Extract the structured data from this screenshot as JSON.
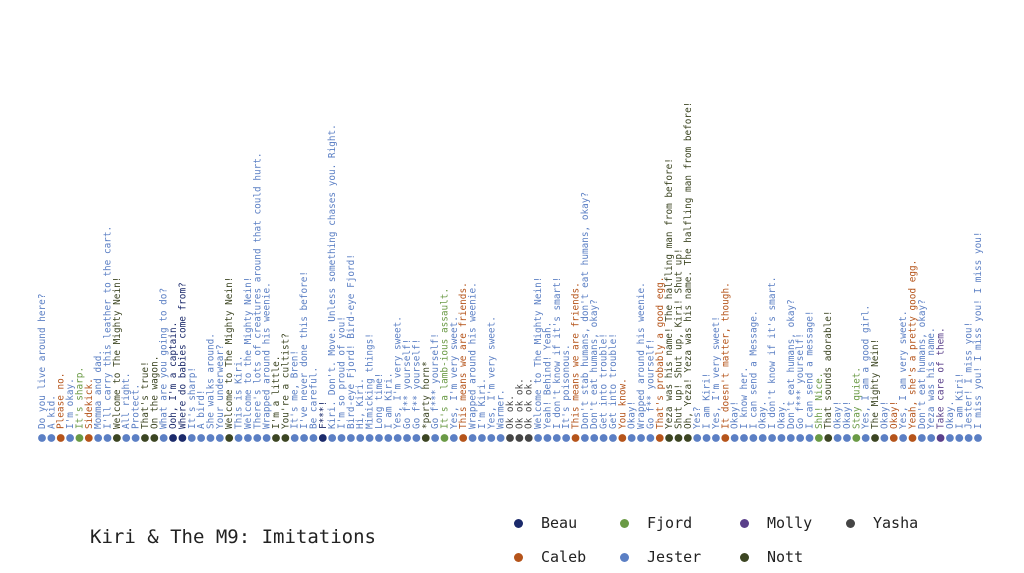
{
  "title": "Kiri & The M9: Imitations",
  "colors": {
    "Beau": "#1b2a6b",
    "Caleb": "#b5541a",
    "Fjord": "#6a9a45",
    "Jester": "#5b7fc4",
    "Molly": "#5a3f8a",
    "Nott": "#3c4522",
    "Yasha": "#454545"
  },
  "legend": [
    {
      "name": "Beau"
    },
    {
      "name": "Fjord"
    },
    {
      "name": "Molly"
    },
    {
      "name": "Yasha"
    },
    {
      "name": "Caleb"
    },
    {
      "name": "Jester"
    },
    {
      "name": "Nott"
    }
  ],
  "chart_data": {
    "type": "scatter",
    "title": "Kiri & The M9: Imitations",
    "series": [
      "Beau",
      "Caleb",
      "Fjord",
      "Jester",
      "Molly",
      "Nott",
      "Yasha"
    ],
    "points": [
      {
        "speaker": "Jester",
        "text": "Do you live around here?"
      },
      {
        "speaker": "Jester",
        "text": "A kid."
      },
      {
        "speaker": "Caleb",
        "text": "Please no."
      },
      {
        "speaker": "Jester",
        "text": "I'm okay."
      },
      {
        "speaker": "Fjord",
        "text": "It's sharp."
      },
      {
        "speaker": "Caleb",
        "text": "Sidekick."
      },
      {
        "speaker": "Jester",
        "text": "Momma and dad."
      },
      {
        "speaker": "Jester",
        "text": "I'll carry this leather to the cart."
      },
      {
        "speaker": "Nott",
        "text": "Welcome to The Mighty Nein!"
      },
      {
        "speaker": "Jester",
        "text": "All right."
      },
      {
        "speaker": "Jester",
        "text": "Protect."
      },
      {
        "speaker": "Nott",
        "text": "That's true!"
      },
      {
        "speaker": "Nott",
        "text": "On the wagon."
      },
      {
        "speaker": "Jester",
        "text": "What are you going to do?"
      },
      {
        "speaker": "Beau",
        "text": "Ooh, I'm a captain."
      },
      {
        "speaker": "Beau",
        "text": "Where do babies come from?"
      },
      {
        "speaker": "Jester",
        "text": "It's sharp!"
      },
      {
        "speaker": "Jester",
        "text": "A bird!"
      },
      {
        "speaker": "Jester",
        "text": "She walks around."
      },
      {
        "speaker": "Jester",
        "text": "Your underwear?"
      },
      {
        "speaker": "Nott",
        "text": "Welcome to The Mighty Nein!"
      },
      {
        "speaker": "Jester",
        "text": "This is Kiri."
      },
      {
        "speaker": "Jester",
        "text": "Welcome to the Mighty Nein!"
      },
      {
        "speaker": "Jester",
        "text": "There's lots of creatures around that could hurt."
      },
      {
        "speaker": "Jester",
        "text": "Wrapped around his weenie."
      },
      {
        "speaker": "Nott",
        "text": "I'm a little."
      },
      {
        "speaker": "Nott",
        "text": "You're a cultist?"
      },
      {
        "speaker": "Jester",
        "text": "It's me, Bren!"
      },
      {
        "speaker": "Jester",
        "text": "I've never done this before!"
      },
      {
        "speaker": "Jester",
        "text": "Be careful."
      },
      {
        "speaker": "Beau",
        "text": "F***!"
      },
      {
        "speaker": "Jester",
        "text": "Kiri. Don't. Move. Unless something chases you. Right."
      },
      {
        "speaker": "Jester",
        "text": "I'm so proud of you!"
      },
      {
        "speaker": "Jester",
        "text": "Bird-eye Fjord! Bird-eye Fjord!"
      },
      {
        "speaker": "Jester",
        "text": "Hi, Kiri."
      },
      {
        "speaker": "Jester",
        "text": "Mimicking things!"
      },
      {
        "speaker": "Jester",
        "text": "Long time!"
      },
      {
        "speaker": "Jester",
        "text": "I am Kiri."
      },
      {
        "speaker": "Jester",
        "text": "Yes, I'm very sweet."
      },
      {
        "speaker": "Jester",
        "text": "Go f** yourself!"
      },
      {
        "speaker": "Jester",
        "text": "Go f** yourself!"
      },
      {
        "speaker": "Nott",
        "text": "*party horn*"
      },
      {
        "speaker": "Jester",
        "text": "Go f*** yourself!"
      },
      {
        "speaker": "Fjord",
        "text": "It's a lamb-ious assault."
      },
      {
        "speaker": "Jester",
        "text": "Yes, I'm very sweet."
      },
      {
        "speaker": "Caleb",
        "text": "This means we are friends."
      },
      {
        "speaker": "Jester",
        "text": "Wrapped around his weenie."
      },
      {
        "speaker": "Jester",
        "text": "I'm Kiri."
      },
      {
        "speaker": "Jester",
        "text": "Yes, I'm very sweet."
      },
      {
        "speaker": "Jester",
        "text": "Warmer."
      },
      {
        "speaker": "Yasha",
        "text": "Ok ok."
      },
      {
        "speaker": "Yasha",
        "text": "Ok ok ok."
      },
      {
        "speaker": "Yasha",
        "text": "Ok ok ok."
      },
      {
        "speaker": "Jester",
        "text": "Welcome to The Mighty Nein!"
      },
      {
        "speaker": "Jester",
        "text": "Yeah! Behind! Yeah."
      },
      {
        "speaker": "Jester",
        "text": "I don't know if it's smart!"
      },
      {
        "speaker": "Jester",
        "text": "It's poisonous."
      },
      {
        "speaker": "Caleb",
        "text": "This means we are friends."
      },
      {
        "speaker": "Jester",
        "text": "Don't stab humans, don't eat humans, okay?"
      },
      {
        "speaker": "Jester",
        "text": "Don't eat humans, okay?"
      },
      {
        "speaker": "Jester",
        "text": "Get into trouble!"
      },
      {
        "speaker": "Jester",
        "text": "Get into trouble!"
      },
      {
        "speaker": "Caleb",
        "text": "You know."
      },
      {
        "speaker": "Jester",
        "text": "Okay!"
      },
      {
        "speaker": "Jester",
        "text": "Wrapped around his weenie."
      },
      {
        "speaker": "Jester",
        "text": "Go f** yourself!"
      },
      {
        "speaker": "Caleb",
        "text": "That's probably a good egg."
      },
      {
        "speaker": "Nott",
        "text": "Yeza was his name! The halfling man from before!"
      },
      {
        "speaker": "Nott",
        "text": "Shut up! Shut up, Kiri! Shut up!"
      },
      {
        "speaker": "Nott",
        "text": "Oh, Yeza! Yeza was his name. The halfling man from before!"
      },
      {
        "speaker": "Jester",
        "text": "Yes?"
      },
      {
        "speaker": "Jester",
        "text": "I am Kiri!"
      },
      {
        "speaker": "Jester",
        "text": "Yes, I'm very sweet!"
      },
      {
        "speaker": "Caleb",
        "text": "It doesn't matter, though."
      },
      {
        "speaker": "Jester",
        "text": "Okay!"
      },
      {
        "speaker": "Jester",
        "text": "I know her."
      },
      {
        "speaker": "Jester",
        "text": "I can send a Message."
      },
      {
        "speaker": "Jester",
        "text": "Okay."
      },
      {
        "speaker": "Jester",
        "text": "I don't know if it's smart."
      },
      {
        "speaker": "Jester",
        "text": "Okay."
      },
      {
        "speaker": "Jester",
        "text": "Don't eat humans, okay?"
      },
      {
        "speaker": "Jester",
        "text": "Go f*** yourself!"
      },
      {
        "speaker": "Jester",
        "text": "I can send a message!"
      },
      {
        "speaker": "Fjord",
        "text": "Shh! Nice."
      },
      {
        "speaker": "Nott",
        "text": "That sounds adorable!"
      },
      {
        "speaker": "Jester",
        "text": "Okay!"
      },
      {
        "speaker": "Jester",
        "text": "Okay!"
      },
      {
        "speaker": "Fjord",
        "text": "Stay quiet."
      },
      {
        "speaker": "Jester",
        "text": "Yes, I am a good girl."
      },
      {
        "speaker": "Nott",
        "text": "The Mighty Nein!"
      },
      {
        "speaker": "Jester",
        "text": "Okay!"
      },
      {
        "speaker": "Caleb",
        "text": "Okay!"
      },
      {
        "speaker": "Jester",
        "text": "Yes, I am very sweet."
      },
      {
        "speaker": "Caleb",
        "text": "Yeah, she's a pretty good egg."
      },
      {
        "speaker": "Jester",
        "text": "Don't eat humans, okay?"
      },
      {
        "speaker": "Jester",
        "text": "Yeza was his name."
      },
      {
        "speaker": "Molly",
        "text": "Take care of them."
      },
      {
        "speaker": "Jester",
        "text": "Okay."
      },
      {
        "speaker": "Jester",
        "text": "I am Kiri!"
      },
      {
        "speaker": "Jester",
        "text": "Jester! I miss you!"
      },
      {
        "speaker": "Jester",
        "text": "I miss you! I miss you! I miss you!"
      }
    ]
  }
}
